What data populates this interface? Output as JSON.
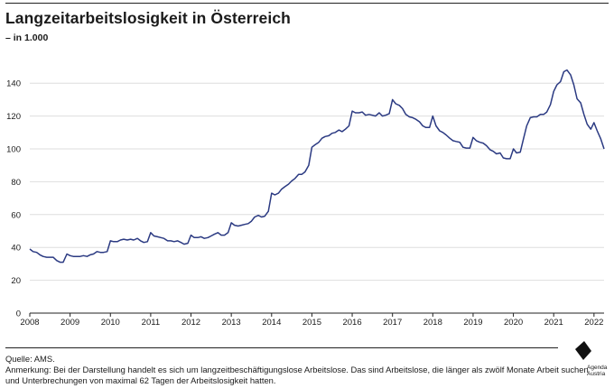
{
  "header": {
    "title": "Langzeitarbeitslosigkeit in Österreich",
    "subtitle": "– in 1.000"
  },
  "footer": {
    "source": "Quelle: AMS.",
    "note_line1": "Anmerkung: Bei der Darstellung handelt es sich um langzeitbeschäftigungslose Arbeitslose. Das sind Arbeitslose, die länger als zwölf Monate Arbeit suchen",
    "note_line2": "und Unterbrechungen von maximal 62 Tagen der Arbeitslosigkeit hatten."
  },
  "logo": {
    "line1": "Agenda",
    "line2": "Austria",
    "icon": "agenda-austria-logo-icon"
  },
  "colors": {
    "line": "#2b3a82",
    "grid": "#dedede",
    "axis": "#222222",
    "text": "#1a1a1a"
  },
  "chart_data": {
    "type": "line",
    "title": "Langzeitarbeitslosigkeit in Österreich",
    "subtitle": "– in 1.000",
    "xlabel": "",
    "ylabel": "",
    "xlim": [
      2008,
      2022.25
    ],
    "ylim": [
      0,
      150
    ],
    "yticks": [
      0,
      20,
      40,
      60,
      80,
      100,
      120,
      140
    ],
    "xticks": [
      "2008",
      "2009",
      "2010",
      "2011",
      "2012",
      "2013",
      "2014",
      "2015",
      "2016",
      "2017",
      "2018",
      "2019",
      "2020",
      "2021",
      "2022"
    ],
    "grid": true,
    "legend": "none",
    "series": [
      {
        "values": [
          [
            2008.0,
            39
          ],
          [
            2008.08,
            37.5
          ],
          [
            2008.17,
            37
          ],
          [
            2008.25,
            35.5
          ],
          [
            2008.33,
            34.5
          ],
          [
            2008.42,
            34
          ],
          [
            2008.5,
            34
          ],
          [
            2008.58,
            34
          ],
          [
            2008.67,
            32
          ],
          [
            2008.75,
            31
          ],
          [
            2008.83,
            31
          ],
          [
            2008.92,
            36
          ],
          [
            2009.0,
            35
          ],
          [
            2009.08,
            34.5
          ],
          [
            2009.17,
            34.5
          ],
          [
            2009.25,
            34.5
          ],
          [
            2009.33,
            35
          ],
          [
            2009.42,
            34.5
          ],
          [
            2009.5,
            35.5
          ],
          [
            2009.58,
            36
          ],
          [
            2009.67,
            37.5
          ],
          [
            2009.75,
            37
          ],
          [
            2009.83,
            37
          ],
          [
            2009.92,
            37.5
          ],
          [
            2010.0,
            44
          ],
          [
            2010.08,
            43.5
          ],
          [
            2010.17,
            43.5
          ],
          [
            2010.25,
            44.5
          ],
          [
            2010.33,
            45
          ],
          [
            2010.42,
            44.5
          ],
          [
            2010.5,
            45
          ],
          [
            2010.58,
            44.5
          ],
          [
            2010.67,
            45.5
          ],
          [
            2010.75,
            44
          ],
          [
            2010.83,
            43
          ],
          [
            2010.92,
            43.5
          ],
          [
            2011.0,
            49
          ],
          [
            2011.08,
            47
          ],
          [
            2011.17,
            46.5
          ],
          [
            2011.25,
            46
          ],
          [
            2011.33,
            45.5
          ],
          [
            2011.42,
            44
          ],
          [
            2011.5,
            44
          ],
          [
            2011.58,
            43.5
          ],
          [
            2011.67,
            44
          ],
          [
            2011.75,
            43
          ],
          [
            2011.83,
            42
          ],
          [
            2011.92,
            42.5
          ],
          [
            2012.0,
            47.5
          ],
          [
            2012.08,
            46
          ],
          [
            2012.17,
            46
          ],
          [
            2012.25,
            46.5
          ],
          [
            2012.33,
            45.5
          ],
          [
            2012.42,
            46
          ],
          [
            2012.5,
            47
          ],
          [
            2012.58,
            48
          ],
          [
            2012.67,
            49
          ],
          [
            2012.75,
            47.5
          ],
          [
            2012.83,
            47.5
          ],
          [
            2012.92,
            49
          ],
          [
            2013.0,
            55
          ],
          [
            2013.08,
            53.5
          ],
          [
            2013.17,
            53
          ],
          [
            2013.25,
            53.5
          ],
          [
            2013.33,
            54
          ],
          [
            2013.42,
            54.5
          ],
          [
            2013.5,
            56
          ],
          [
            2013.58,
            58.5
          ],
          [
            2013.67,
            59.5
          ],
          [
            2013.75,
            58.5
          ],
          [
            2013.83,
            59
          ],
          [
            2013.92,
            62
          ],
          [
            2014.0,
            73
          ],
          [
            2014.08,
            72
          ],
          [
            2014.17,
            73
          ],
          [
            2014.25,
            75.5
          ],
          [
            2014.33,
            77
          ],
          [
            2014.42,
            78.5
          ],
          [
            2014.5,
            80.5
          ],
          [
            2014.58,
            82
          ],
          [
            2014.67,
            84.5
          ],
          [
            2014.75,
            84.5
          ],
          [
            2014.83,
            86
          ],
          [
            2014.92,
            90
          ],
          [
            2015.0,
            101
          ],
          [
            2015.08,
            102.5
          ],
          [
            2015.17,
            104
          ],
          [
            2015.25,
            106.5
          ],
          [
            2015.33,
            107.5
          ],
          [
            2015.42,
            108
          ],
          [
            2015.5,
            109.5
          ],
          [
            2015.58,
            110
          ],
          [
            2015.67,
            111.5
          ],
          [
            2015.75,
            110.5
          ],
          [
            2015.83,
            112
          ],
          [
            2015.92,
            114
          ],
          [
            2016.0,
            123
          ],
          [
            2016.08,
            122
          ],
          [
            2016.17,
            122
          ],
          [
            2016.25,
            122.5
          ],
          [
            2016.33,
            120.5
          ],
          [
            2016.42,
            121
          ],
          [
            2016.5,
            120.5
          ],
          [
            2016.58,
            120
          ],
          [
            2016.67,
            122
          ],
          [
            2016.75,
            120
          ],
          [
            2016.83,
            120.5
          ],
          [
            2016.92,
            121.5
          ],
          [
            2017.0,
            130
          ],
          [
            2017.08,
            127.5
          ],
          [
            2017.17,
            126.5
          ],
          [
            2017.25,
            124.5
          ],
          [
            2017.33,
            121
          ],
          [
            2017.42,
            119.5
          ],
          [
            2017.5,
            119
          ],
          [
            2017.58,
            118
          ],
          [
            2017.67,
            116.5
          ],
          [
            2017.75,
            114
          ],
          [
            2017.83,
            113
          ],
          [
            2017.92,
            113
          ],
          [
            2018.0,
            120
          ],
          [
            2018.08,
            114
          ],
          [
            2018.17,
            111
          ],
          [
            2018.25,
            110
          ],
          [
            2018.33,
            108.5
          ],
          [
            2018.42,
            106.5
          ],
          [
            2018.5,
            105
          ],
          [
            2018.58,
            104.5
          ],
          [
            2018.67,
            104
          ],
          [
            2018.75,
            101
          ],
          [
            2018.83,
            100.5
          ],
          [
            2018.92,
            100.5
          ],
          [
            2019.0,
            107
          ],
          [
            2019.08,
            105
          ],
          [
            2019.17,
            104
          ],
          [
            2019.25,
            103.5
          ],
          [
            2019.33,
            102
          ],
          [
            2019.42,
            99.5
          ],
          [
            2019.5,
            98.5
          ],
          [
            2019.58,
            97
          ],
          [
            2019.67,
            97.5
          ],
          [
            2019.75,
            94.5
          ],
          [
            2019.83,
            94
          ],
          [
            2019.92,
            94
          ],
          [
            2020.0,
            100
          ],
          [
            2020.08,
            97.5
          ],
          [
            2020.17,
            98
          ],
          [
            2020.25,
            106
          ],
          [
            2020.33,
            114
          ],
          [
            2020.42,
            119
          ],
          [
            2020.5,
            119.5
          ],
          [
            2020.58,
            119.5
          ],
          [
            2020.67,
            121
          ],
          [
            2020.75,
            121
          ],
          [
            2020.83,
            122.5
          ],
          [
            2020.92,
            127
          ],
          [
            2021.0,
            135
          ],
          [
            2021.08,
            139
          ],
          [
            2021.17,
            141
          ],
          [
            2021.25,
            147
          ],
          [
            2021.33,
            148
          ],
          [
            2021.42,
            145
          ],
          [
            2021.5,
            139
          ],
          [
            2021.58,
            130.5
          ],
          [
            2021.67,
            128
          ],
          [
            2021.75,
            121
          ],
          [
            2021.83,
            115
          ],
          [
            2021.92,
            112
          ],
          [
            2022.0,
            116
          ],
          [
            2022.08,
            111
          ],
          [
            2022.17,
            106
          ],
          [
            2022.25,
            100
          ]
        ]
      }
    ]
  }
}
